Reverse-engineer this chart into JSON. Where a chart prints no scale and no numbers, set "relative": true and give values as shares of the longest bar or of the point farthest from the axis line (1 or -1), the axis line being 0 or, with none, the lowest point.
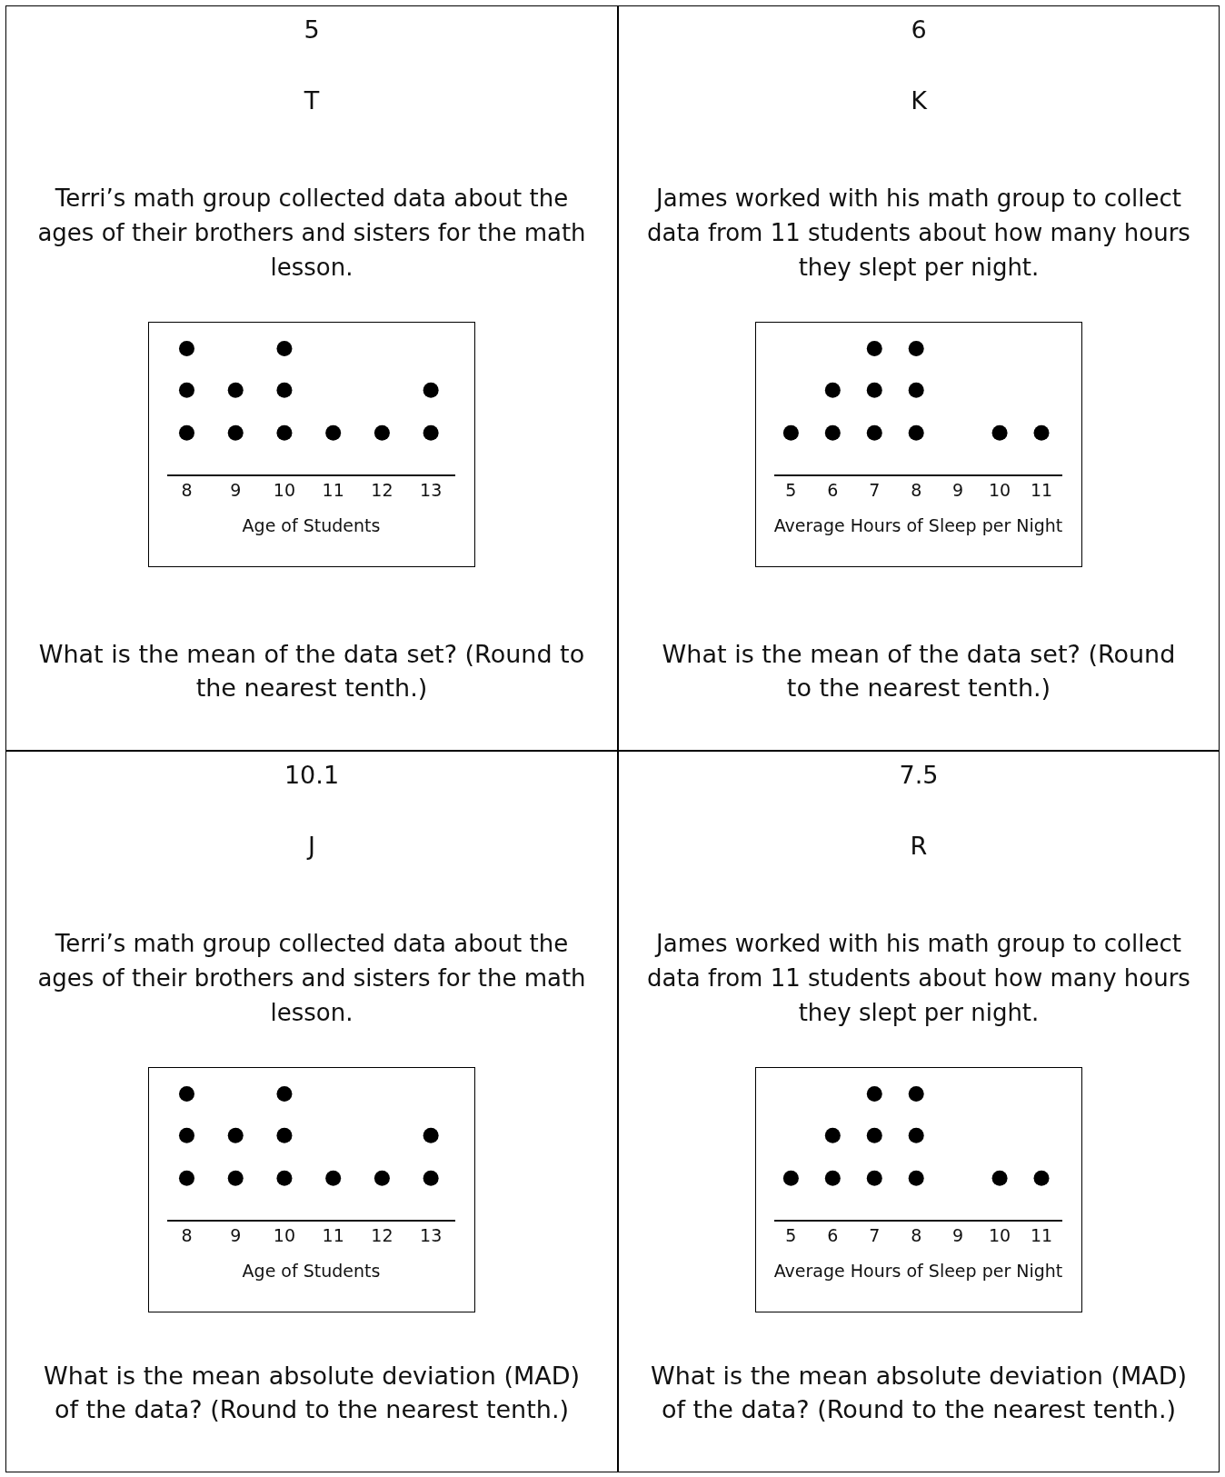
{
  "chart_data": [
    {
      "type": "scatter",
      "annotations": [
        "5",
        "T",
        "What is the mean of the data set? (Round to the nearest tenth.)"
      ],
      "title": "Terri’s math group collected data about the ages of their brothers and sisters for the math lesson.",
      "xlabel": "Age of Students",
      "x": [
        8,
        8,
        8,
        9,
        9,
        10,
        10,
        10,
        11,
        12,
        13,
        13
      ],
      "values": [
        0.33,
        0.67,
        1,
        0.33,
        0.67,
        0.33,
        0.67,
        1,
        0.33,
        0.33,
        0.33,
        0.67
      ],
      "relative": true,
      "color": "#000000",
      "marker": "circle",
      "xlim": [
        7.6,
        13.5
      ],
      "xticks": [
        8,
        9,
        10,
        11,
        12,
        13
      ],
      "tick_labels": "x"
    },
    {
      "type": "scatter",
      "annotations": [
        "6",
        "K",
        "What is the mean of the data set? (Round to the nearest tenth.)"
      ],
      "title": "James worked with his math group to collect data from 11 students about how many hours they slept per night.",
      "xlabel": "Average Hours of Sleep per Night",
      "x": [
        5,
        6,
        6,
        7,
        7,
        7,
        8,
        8,
        8,
        10,
        11
      ],
      "values": [
        0.33,
        0.33,
        0.67,
        0.33,
        0.67,
        1,
        0.33,
        0.67,
        1,
        0.33,
        0.33
      ],
      "relative": true,
      "color": "#000000",
      "marker": "circle",
      "xlim": [
        4.6,
        11.5
      ],
      "xticks": [
        5,
        6,
        7,
        8,
        9,
        10,
        11
      ],
      "tick_labels": "x"
    },
    {
      "type": "scatter",
      "annotations": [
        "10.1",
        "J",
        "What is the mean absolute deviation (MAD) of the data? (Round to the nearest tenth.)"
      ],
      "title": "Terri’s math group collected data about the ages of their brothers and sisters for the math lesson.",
      "xlabel": "Age of Students",
      "x": [
        8,
        8,
        8,
        9,
        9,
        10,
        10,
        10,
        11,
        12,
        13,
        13
      ],
      "values": [
        0.33,
        0.67,
        1,
        0.33,
        0.67,
        0.33,
        0.67,
        1,
        0.33,
        0.33,
        0.33,
        0.67
      ],
      "relative": true,
      "color": "#000000",
      "marker": "circle",
      "xlim": [
        7.6,
        13.5
      ],
      "xticks": [
        8,
        9,
        10,
        11,
        12,
        13
      ],
      "tick_labels": "x"
    },
    {
      "type": "scatter",
      "annotations": [
        "7.5",
        "R",
        "What is the mean absolute deviation (MAD) of the data? (Round to the nearest tenth.)"
      ],
      "title": "James worked with his math group to collect data from 11 students about how many hours they slept per night.",
      "xlabel": "Average Hours of Sleep per Night",
      "x": [
        5,
        6,
        6,
        7,
        7,
        7,
        8,
        8,
        8,
        10,
        11
      ],
      "values": [
        0.33,
        0.33,
        0.67,
        0.33,
        0.67,
        1,
        0.33,
        0.67,
        1,
        0.33,
        0.33
      ],
      "relative": true,
      "color": "#000000",
      "marker": "circle",
      "xlim": [
        4.6,
        11.5
      ],
      "xticks": [
        5,
        6,
        7,
        8,
        9,
        10,
        11
      ],
      "tick_labels": "x"
    }
  ]
}
